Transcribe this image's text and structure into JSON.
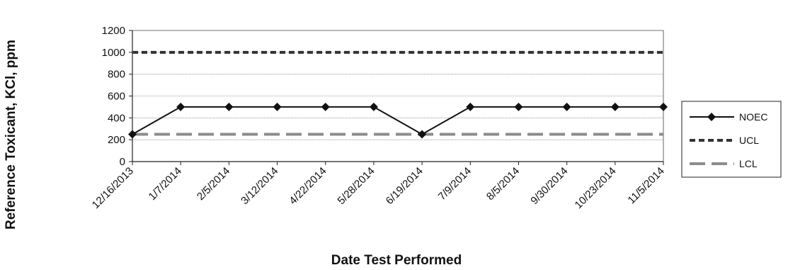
{
  "chart_data": {
    "type": "line",
    "title": "",
    "xlabel": "Date Test Performed",
    "ylabel": "Reference Toxicant, KCl, ppm",
    "ylim": [
      0,
      1200
    ],
    "yticks": [
      0,
      200,
      400,
      600,
      800,
      1000,
      1200
    ],
    "categories": [
      "12/16/2013",
      "1/7/2014",
      "2/5/2014",
      "3/12/2014",
      "4/22/2014",
      "5/28/2014",
      "6/19/2014",
      "7/9/2014",
      "8/5/2014",
      "9/30/2014",
      "10/23/2014",
      "11/5/2014"
    ],
    "grid": true,
    "legend_position": "right",
    "series": [
      {
        "name": "NOEC",
        "style": "solid-diamond",
        "color": "#111111",
        "values": [
          250,
          500,
          500,
          500,
          500,
          500,
          250,
          500,
          500,
          500,
          500,
          500
        ]
      },
      {
        "name": "UCL",
        "style": "dashed",
        "color": "#333333",
        "values": [
          1000,
          1000,
          1000,
          1000,
          1000,
          1000,
          1000,
          1000,
          1000,
          1000,
          1000,
          1000
        ]
      },
      {
        "name": "LCL",
        "style": "long-dash",
        "color": "#8c8c8c",
        "values": [
          250,
          250,
          250,
          250,
          250,
          250,
          250,
          250,
          250,
          250,
          250,
          250
        ]
      }
    ]
  }
}
